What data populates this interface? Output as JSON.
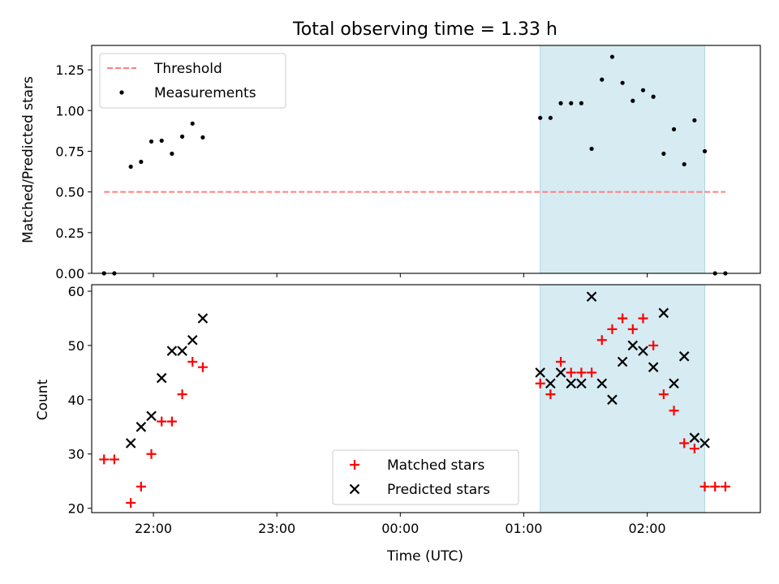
{
  "chart_data": [
    {
      "type": "scatter",
      "title": "Total observing time = 1.33 h",
      "xlabel": "",
      "ylabel": "Matched/Predicted stars",
      "ylim": [
        0,
        1.4
      ],
      "yticks": [
        0,
        0.25,
        0.5,
        0.75,
        1.0,
        1.25
      ],
      "ytick_labels": [
        "0.00",
        "0.25",
        "0.50",
        "0.75",
        "1.00",
        "1.25"
      ],
      "xlim": [
        "21:30",
        "02:55"
      ],
      "xticks": [
        "22:00",
        "23:00",
        "00:00",
        "01:00",
        "02:00"
      ],
      "legend_position": "upper-left",
      "highlight_span": {
        "start": "01:08",
        "end": "02:28",
        "color": "#add8e6"
      },
      "series": [
        {
          "name": "Threshold",
          "kind": "line",
          "style": "dashed",
          "color": "#ff7f7f",
          "x": [
            "21:36",
            "02:38"
          ],
          "y": [
            0.5,
            0.5
          ]
        },
        {
          "name": "Measurements",
          "kind": "scatter",
          "marker": "dot",
          "color": "#000000",
          "points": [
            {
              "x": "21:36",
              "y": 0.0
            },
            {
              "x": "21:41",
              "y": 0.0
            },
            {
              "x": "21:49",
              "y": 0.655
            },
            {
              "x": "21:54",
              "y": 0.685
            },
            {
              "x": "21:59",
              "y": 0.81
            },
            {
              "x": "22:04",
              "y": 0.815
            },
            {
              "x": "22:09",
              "y": 0.735
            },
            {
              "x": "22:14",
              "y": 0.84
            },
            {
              "x": "22:19",
              "y": 0.92
            },
            {
              "x": "22:24",
              "y": 0.835
            },
            {
              "x": "01:08",
              "y": 0.955
            },
            {
              "x": "01:13",
              "y": 0.955
            },
            {
              "x": "01:18",
              "y": 1.045
            },
            {
              "x": "01:23",
              "y": 1.045
            },
            {
              "x": "01:28",
              "y": 1.045
            },
            {
              "x": "01:33",
              "y": 0.765
            },
            {
              "x": "01:38",
              "y": 1.19
            },
            {
              "x": "01:43",
              "y": 1.33
            },
            {
              "x": "01:48",
              "y": 1.17
            },
            {
              "x": "01:53",
              "y": 1.06
            },
            {
              "x": "01:58",
              "y": 1.125
            },
            {
              "x": "02:03",
              "y": 1.085
            },
            {
              "x": "02:08",
              "y": 0.735
            },
            {
              "x": "02:13",
              "y": 0.885
            },
            {
              "x": "02:18",
              "y": 0.67
            },
            {
              "x": "02:23",
              "y": 0.94
            },
            {
              "x": "02:28",
              "y": 0.75
            },
            {
              "x": "02:33",
              "y": 0.0
            },
            {
              "x": "02:38",
              "y": 0.0
            }
          ]
        }
      ]
    },
    {
      "type": "scatter",
      "title": "",
      "xlabel": "Time (UTC)",
      "ylabel": "Count",
      "ylim": [
        19.2,
        61.2
      ],
      "yticks": [
        20,
        30,
        40,
        50,
        60
      ],
      "ytick_labels": [
        "20",
        "30",
        "40",
        "50",
        "60"
      ],
      "xlim": [
        "21:30",
        "02:55"
      ],
      "xticks": [
        "22:00",
        "23:00",
        "00:00",
        "01:00",
        "02:00"
      ],
      "legend_position": "lower-center",
      "highlight_span": {
        "start": "01:08",
        "end": "02:28",
        "color": "#add8e6"
      },
      "series": [
        {
          "name": "Matched stars",
          "marker": "plus",
          "color": "#ff0000",
          "points": [
            {
              "x": "21:36",
              "y": 29
            },
            {
              "x": "21:41",
              "y": 29
            },
            {
              "x": "21:49",
              "y": 21
            },
            {
              "x": "21:54",
              "y": 24
            },
            {
              "x": "21:59",
              "y": 30
            },
            {
              "x": "22:04",
              "y": 36
            },
            {
              "x": "22:09",
              "y": 36
            },
            {
              "x": "22:14",
              "y": 41
            },
            {
              "x": "22:19",
              "y": 47
            },
            {
              "x": "22:24",
              "y": 46
            },
            {
              "x": "01:08",
              "y": 43
            },
            {
              "x": "01:13",
              "y": 41
            },
            {
              "x": "01:18",
              "y": 47
            },
            {
              "x": "01:23",
              "y": 45
            },
            {
              "x": "01:28",
              "y": 45
            },
            {
              "x": "01:33",
              "y": 45
            },
            {
              "x": "01:38",
              "y": 51
            },
            {
              "x": "01:43",
              "y": 53
            },
            {
              "x": "01:48",
              "y": 55
            },
            {
              "x": "01:53",
              "y": 53
            },
            {
              "x": "01:58",
              "y": 55
            },
            {
              "x": "02:03",
              "y": 50
            },
            {
              "x": "02:08",
              "y": 41
            },
            {
              "x": "02:13",
              "y": 38
            },
            {
              "x": "02:18",
              "y": 32
            },
            {
              "x": "02:23",
              "y": 31
            },
            {
              "x": "02:28",
              "y": 24
            },
            {
              "x": "02:33",
              "y": 24
            },
            {
              "x": "02:38",
              "y": 24
            }
          ]
        },
        {
          "name": "Predicted stars",
          "marker": "x",
          "color": "#000000",
          "points": [
            {
              "x": "21:49",
              "y": 32
            },
            {
              "x": "21:54",
              "y": 35
            },
            {
              "x": "21:59",
              "y": 37
            },
            {
              "x": "22:04",
              "y": 44
            },
            {
              "x": "22:09",
              "y": 49
            },
            {
              "x": "22:14",
              "y": 49
            },
            {
              "x": "22:19",
              "y": 51
            },
            {
              "x": "22:24",
              "y": 55
            },
            {
              "x": "01:08",
              "y": 45
            },
            {
              "x": "01:13",
              "y": 43
            },
            {
              "x": "01:18",
              "y": 45
            },
            {
              "x": "01:23",
              "y": 43
            },
            {
              "x": "01:28",
              "y": 43
            },
            {
              "x": "01:33",
              "y": 59
            },
            {
              "x": "01:38",
              "y": 43
            },
            {
              "x": "01:43",
              "y": 40
            },
            {
              "x": "01:48",
              "y": 47
            },
            {
              "x": "01:53",
              "y": 50
            },
            {
              "x": "01:58",
              "y": 49
            },
            {
              "x": "02:03",
              "y": 46
            },
            {
              "x": "02:08",
              "y": 56
            },
            {
              "x": "02:13",
              "y": 43
            },
            {
              "x": "02:18",
              "y": 48
            },
            {
              "x": "02:23",
              "y": 33
            },
            {
              "x": "02:28",
              "y": 32
            }
          ]
        }
      ]
    }
  ]
}
